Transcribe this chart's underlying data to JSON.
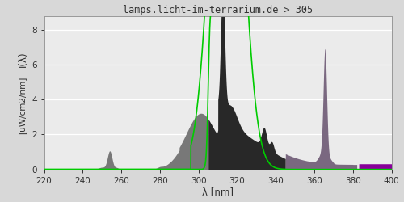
{
  "title": "lamps.licht-im-terrarium.de > 305",
  "xlabel": "λ [nm]",
  "ylabel_top": "I(λ)",
  "ylabel_bottom": "[uW/cm2/nm]",
  "xlim": [
    220,
    400
  ],
  "ylim": [
    0,
    8.8
  ],
  "yticks": [
    0,
    2,
    4,
    6,
    8
  ],
  "xticks": [
    220,
    240,
    260,
    280,
    300,
    320,
    340,
    360,
    380,
    400
  ],
  "bg_color": "#d8d8d8",
  "plot_bg_color": "#ebebeb",
  "grid_color": "#ffffff",
  "title_color": "#303030",
  "tick_color": "#303030",
  "label_color": "#303030",
  "color_uvb": "#787878",
  "color_dark": "#282828",
  "color_mauve": "#7a6880",
  "color_purple": "#880099",
  "green_color": "#00cc00"
}
